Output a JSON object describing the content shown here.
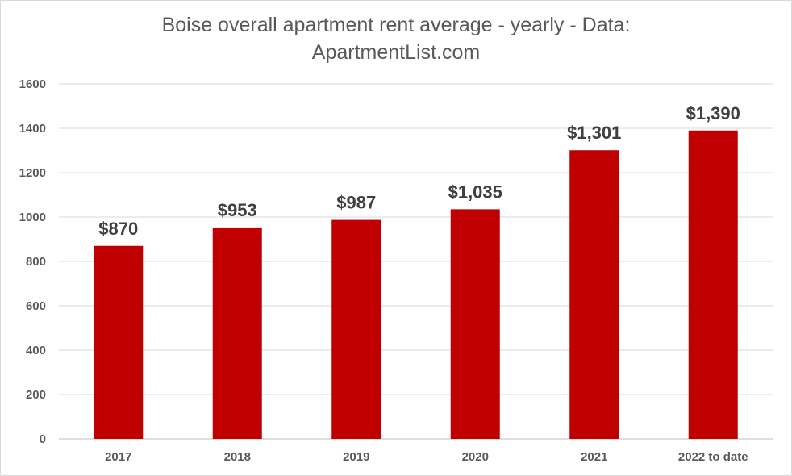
{
  "chart_data": {
    "type": "bar",
    "title_lines": [
      "Boise overall apartment rent average - yearly - Data:",
      "ApartmentList.com"
    ],
    "categories": [
      "2017",
      "2018",
      "2019",
      "2020",
      "2021",
      "2022 to date"
    ],
    "values": [
      870,
      953,
      987,
      1035,
      1301,
      1390
    ],
    "data_labels": [
      "$870",
      "$953",
      "$987",
      "$1,035",
      "$1,301",
      "$1,390"
    ],
    "ylim": [
      0,
      1600
    ],
    "yticks": [
      "0",
      "200",
      "400",
      "600",
      "800",
      "1000",
      "1200",
      "1400",
      "1600"
    ],
    "grid": true,
    "legend": "none",
    "bar_color": "#c00000"
  }
}
